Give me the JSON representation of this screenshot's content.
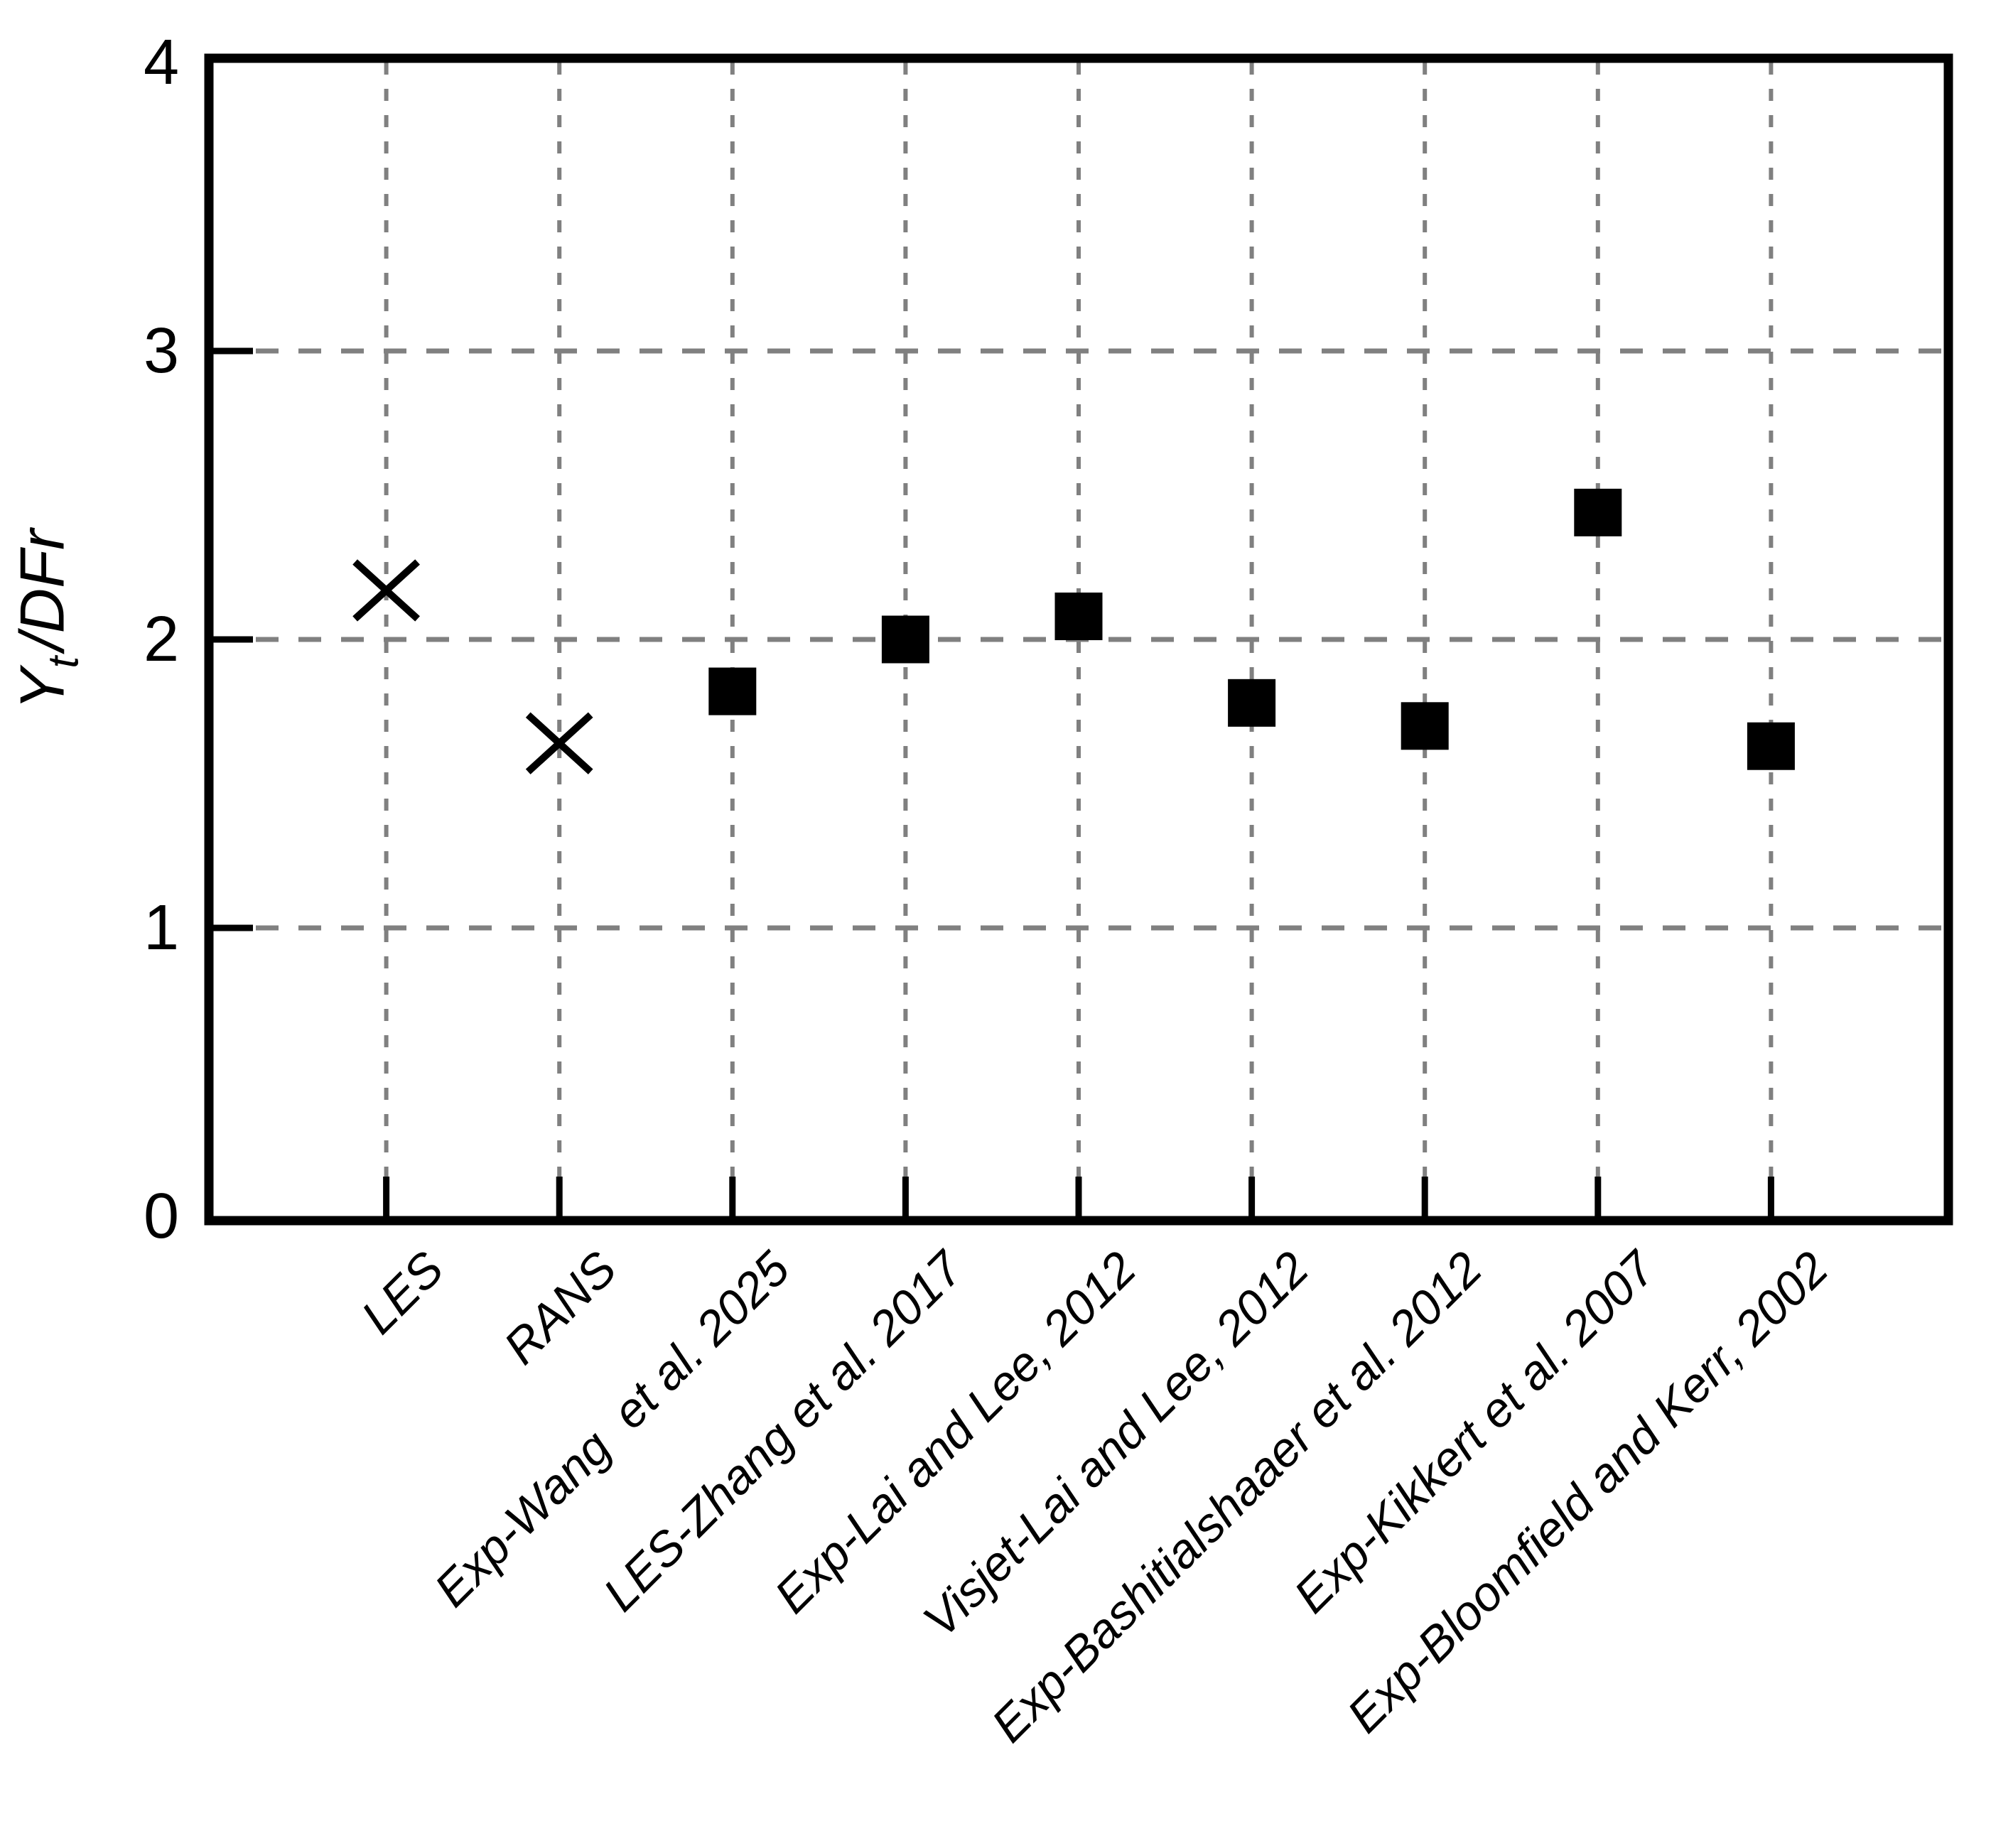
{
  "figure": {
    "background_color": "#ffffff",
    "axis_color": "#000000",
    "grid_color": "#808080",
    "marker_color": "#000000",
    "y_axis_label": {
      "main": "Y",
      "sub": "t",
      "rest": "/DFr"
    },
    "y_tick_labels": [
      "0",
      "1",
      "2",
      "3",
      "4"
    ]
  },
  "chart_data": {
    "type": "scatter",
    "title": "",
    "xlabel": "",
    "ylabel": "Y_t/DFr",
    "ylim": [
      0,
      4
    ],
    "yticks": [
      0,
      1,
      2,
      3,
      4
    ],
    "grid": "dashed vertical line at every category; dashed horizontal lines at y = 1, 2, 3",
    "legend_position": "none",
    "categories": [
      "LES",
      "RANS",
      "Exp-Wang  et al. 2025",
      "LES-Zhang et al. 2017",
      "Exp-Lai and Lee, 2012",
      "Visjet-Lai and Lee, 2012",
      "Exp-Bashitialshaaer et al. 2012",
      "Exp-Kikkert et al. 2007",
      "Exp-Bloomfield and Kerr, 2002"
    ],
    "points": [
      {
        "category": "LES",
        "value": 2.17,
        "marker": "x"
      },
      {
        "category": "RANS",
        "value": 1.64,
        "marker": "x"
      },
      {
        "category": "Exp-Wang  et al. 2025",
        "value": 1.82,
        "marker": "filled-square"
      },
      {
        "category": "LES-Zhang et al. 2017",
        "value": 2.0,
        "marker": "filled-square"
      },
      {
        "category": "Exp-Lai and Lee, 2012",
        "value": 2.08,
        "marker": "filled-square"
      },
      {
        "category": "Visjet-Lai and Lee, 2012",
        "value": 1.78,
        "marker": "filled-square"
      },
      {
        "category": "Exp-Bashitialshaaer et al. 2012",
        "value": 1.7,
        "marker": "filled-square"
      },
      {
        "category": "Exp-Kikkert et al. 2007",
        "value": 2.44,
        "marker": "filled-square"
      },
      {
        "category": "Exp-Bloomfield and Kerr, 2002",
        "value": 1.63,
        "marker": "filled-square"
      }
    ]
  }
}
